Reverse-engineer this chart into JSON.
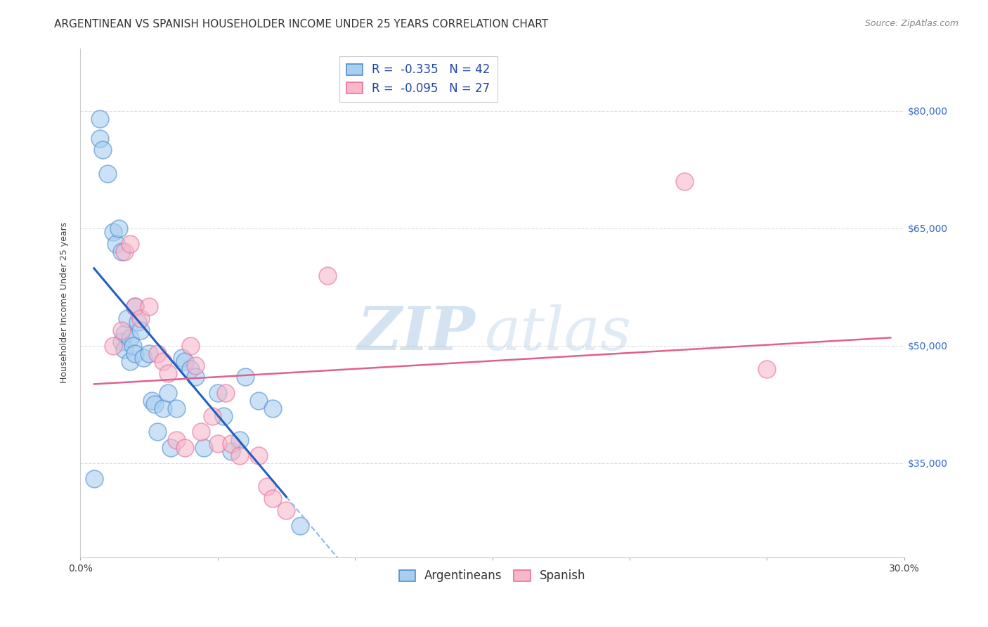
{
  "title": "ARGENTINEAN VS SPANISH HOUSEHOLDER INCOME UNDER 25 YEARS CORRELATION CHART",
  "source": "Source: ZipAtlas.com",
  "ylabel": "Householder Income Under 25 years",
  "xlim": [
    0.0,
    0.3
  ],
  "ylim": [
    23000,
    88000
  ],
  "yticks": [
    35000,
    50000,
    65000,
    80000
  ],
  "ytick_labels": [
    "$35,000",
    "$50,000",
    "$65,000",
    "$80,000"
  ],
  "legend_r_arg": "-0.335",
  "legend_n_arg": "42",
  "legend_r_spa": "-0.095",
  "legend_n_spa": "27",
  "arg_color": "#A8CEF0",
  "spa_color": "#F8B8C8",
  "arg_edge_color": "#5090D0",
  "spa_edge_color": "#E870A0",
  "arg_line_color": "#2060C0",
  "spa_line_color": "#E06090",
  "dashed_line_color": "#90B8E8",
  "background_color": "#FFFFFF",
  "grid_color": "#DDDDDD",
  "arg_points_x": [
    0.005,
    0.007,
    0.007,
    0.008,
    0.01,
    0.012,
    0.013,
    0.014,
    0.015,
    0.015,
    0.016,
    0.016,
    0.017,
    0.018,
    0.018,
    0.019,
    0.02,
    0.02,
    0.021,
    0.022,
    0.023,
    0.025,
    0.026,
    0.027,
    0.028,
    0.03,
    0.032,
    0.033,
    0.035,
    0.037,
    0.038,
    0.04,
    0.042,
    0.045,
    0.05,
    0.052,
    0.055,
    0.058,
    0.06,
    0.065,
    0.07,
    0.08
  ],
  "arg_points_y": [
    33000,
    79000,
    76500,
    75000,
    72000,
    64500,
    63000,
    65000,
    62000,
    50500,
    51500,
    49500,
    53500,
    51000,
    48000,
    50000,
    55000,
    49000,
    53000,
    52000,
    48500,
    49000,
    43000,
    42500,
    39000,
    42000,
    44000,
    37000,
    42000,
    48500,
    48000,
    47000,
    46000,
    37000,
    44000,
    41000,
    36500,
    38000,
    46000,
    43000,
    42000,
    27000
  ],
  "spa_points_x": [
    0.012,
    0.015,
    0.016,
    0.018,
    0.02,
    0.022,
    0.025,
    0.028,
    0.03,
    0.032,
    0.035,
    0.038,
    0.04,
    0.042,
    0.044,
    0.048,
    0.05,
    0.053,
    0.055,
    0.058,
    0.065,
    0.068,
    0.07,
    0.075,
    0.09,
    0.22,
    0.25
  ],
  "spa_points_y": [
    50000,
    52000,
    62000,
    63000,
    55000,
    53500,
    55000,
    49000,
    48000,
    46500,
    38000,
    37000,
    50000,
    47500,
    39000,
    41000,
    37500,
    44000,
    37500,
    36000,
    36000,
    32000,
    30500,
    29000,
    59000,
    71000,
    47000
  ],
  "title_fontsize": 11,
  "axis_fontsize": 9,
  "tick_fontsize": 10,
  "legend_fontsize": 12,
  "watermark_fontsize": 62,
  "source_fontsize": 9
}
